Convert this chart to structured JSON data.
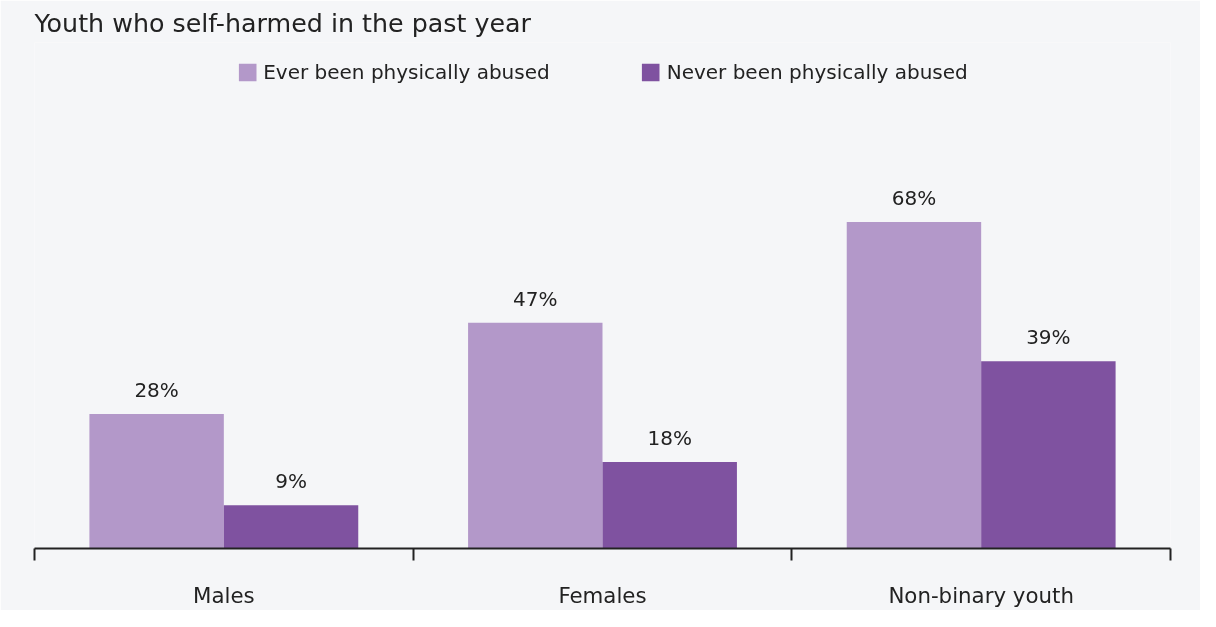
{
  "chart_data": {
    "type": "bar",
    "title": "Youth who self-harmed in the past year",
    "categories": [
      "Males",
      "Females",
      "Non-binary youth"
    ],
    "series": [
      {
        "name": "Ever been physically abused",
        "color": "#b398c9",
        "values": [
          28,
          47,
          68
        ],
        "value_labels": [
          "28%",
          "47%",
          "68%"
        ]
      },
      {
        "name": "Never been physically abused",
        "color": "#7f52a0",
        "values": [
          9,
          18,
          39
        ],
        "value_labels": [
          "9%",
          "18%",
          "39%"
        ]
      }
    ],
    "tick_labels": "x",
    "legend": "top"
  }
}
